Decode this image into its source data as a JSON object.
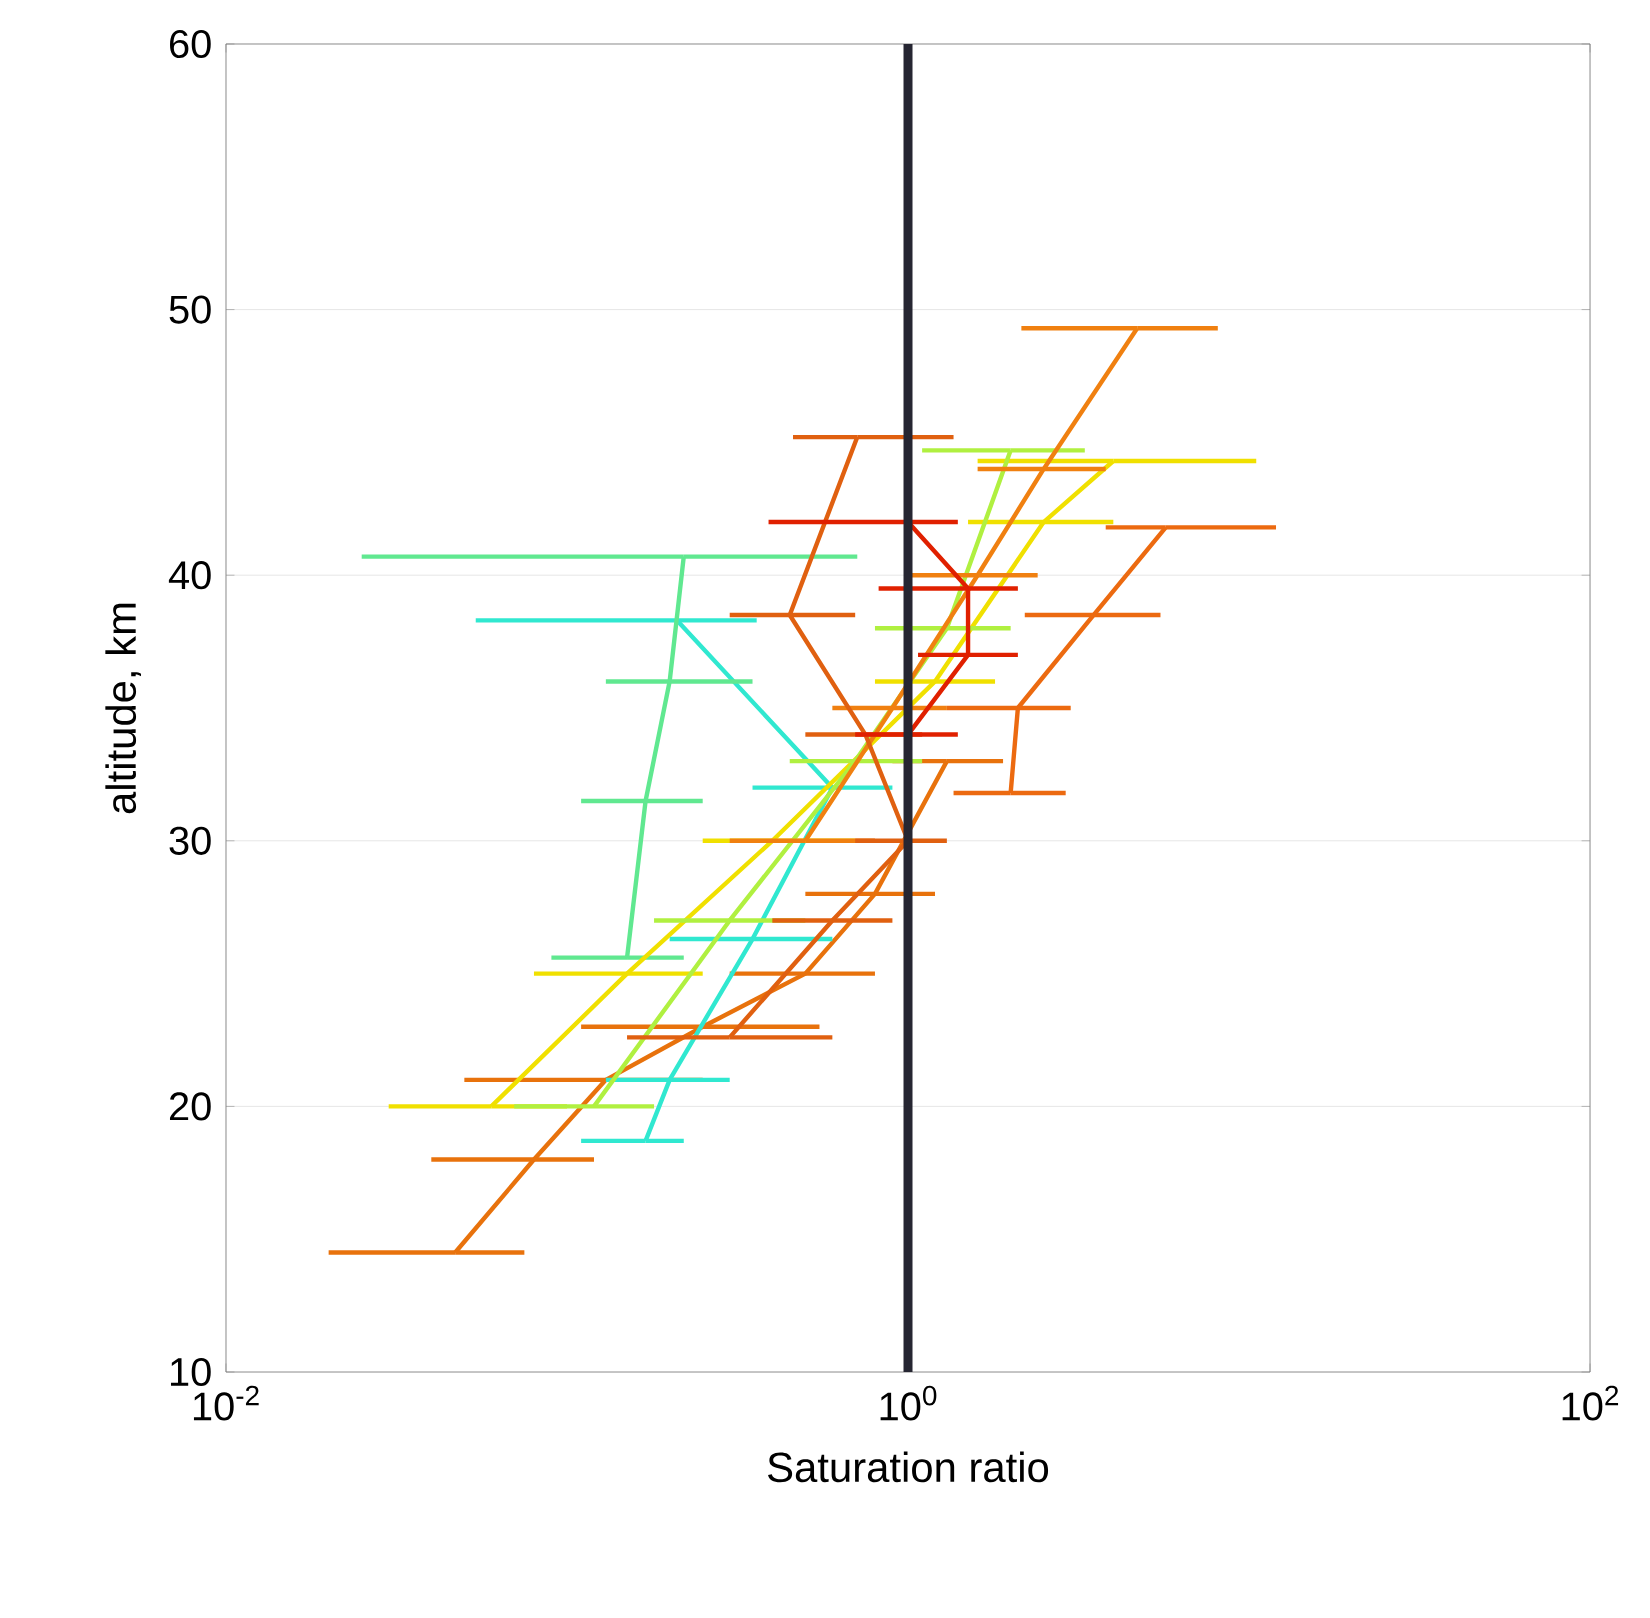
{
  "chart_data": {
    "type": "line",
    "xlabel": "Saturation ratio",
    "ylabel": "altitude, km",
    "log": "x",
    "grid": true,
    "marker": "none",
    "line_style": "solid",
    "xlim": [
      0.01,
      100
    ],
    "ylim": [
      10,
      60
    ],
    "xticks": [
      {
        "value": 0.01,
        "label": "10$^{-2}$"
      },
      {
        "value": 1,
        "label": "10$^{0}$"
      },
      {
        "value": 100,
        "label": "10$^{2}$"
      }
    ],
    "yticks": [
      10,
      20,
      30,
      40,
      50,
      60
    ],
    "ref_lines": [
      {
        "axis": "x",
        "value": 1,
        "color": "#262632"
      }
    ],
    "series": [
      {
        "color": "#e8720c",
        "x": [
          0.047,
          0.08,
          0.13,
          0.25,
          0.5,
          0.8,
          1.3
        ],
        "values": [
          14.5,
          18,
          21,
          23,
          25,
          28,
          33
        ],
        "xerrors": [
          [
            0.02,
            0.075
          ],
          [
            0.04,
            0.12
          ],
          [
            0.05,
            0.25
          ],
          [
            0.11,
            0.55
          ],
          [
            0.3,
            0.8
          ],
          [
            0.5,
            1.2
          ],
          [
            0.9,
            1.9
          ]
        ]
      },
      {
        "color": "#30e8d0",
        "x": [
          0.17,
          0.2,
          0.35,
          0.6,
          0.21
        ],
        "values": [
          18.7,
          21,
          26.3,
          32,
          38.3
        ],
        "xerrors": [
          [
            0.11,
            0.22
          ],
          [
            0.13,
            0.3
          ],
          [
            0.2,
            0.6
          ],
          [
            0.35,
            0.9
          ],
          [
            0.054,
            0.36
          ]
        ]
      },
      {
        "color": "#60e890",
        "x": [
          0.15,
          0.17,
          0.2,
          0.22
        ],
        "values": [
          25.6,
          31.5,
          36,
          40.7
        ],
        "xerrors": [
          [
            0.09,
            0.22
          ],
          [
            0.11,
            0.25
          ],
          [
            0.13,
            0.35
          ],
          [
            0.025,
            0.71
          ]
        ]
      },
      {
        "color": "#f0e000",
        "x": [
          0.06,
          0.15,
          0.4,
          1.2,
          2.5,
          4
        ],
        "values": [
          20,
          25,
          30,
          36,
          42,
          44.3
        ],
        "xerrors": [
          [
            0.03,
            0.1
          ],
          [
            0.08,
            0.25
          ],
          [
            0.25,
            0.7
          ],
          [
            0.8,
            1.8
          ],
          [
            1.5,
            4
          ],
          [
            1.6,
            10.5
          ]
        ]
      },
      {
        "color": "#b0f040",
        "x": [
          0.12,
          0.3,
          0.7,
          1.3,
          2.0
        ],
        "values": [
          20,
          27,
          33,
          38,
          44.7
        ],
        "xerrors": [
          [
            0.07,
            0.18
          ],
          [
            0.18,
            0.5
          ],
          [
            0.45,
            1.1
          ],
          [
            0.8,
            2
          ],
          [
            1.1,
            3.3
          ]
        ]
      },
      {
        "color": "#f08010",
        "x": [
          0.5,
          0.9,
          1.6,
          2.5,
          4.7
        ],
        "values": [
          30,
          35,
          40,
          44,
          49.3
        ],
        "xerrors": [
          [
            0.3,
            0.8
          ],
          [
            0.6,
            1.3
          ],
          [
            1.0,
            2.4
          ],
          [
            1.6,
            3.8
          ],
          [
            2.15,
            8.1
          ]
        ]
      },
      {
        "color": "#e06010",
        "x": [
          0.3,
          0.6,
          1.0,
          0.75,
          0.45,
          0.71
        ],
        "values": [
          22.6,
          27,
          30,
          34,
          38.5,
          45.2
        ],
        "xerrors": [
          [
            0.15,
            0.6
          ],
          [
            0.4,
            0.9
          ],
          [
            0.7,
            1.3
          ],
          [
            0.5,
            1.1
          ],
          [
            0.3,
            0.7
          ],
          [
            0.46,
            1.36
          ]
        ]
      },
      {
        "color": "#ec6a10",
        "x": [
          2.0,
          2.1,
          3.5,
          5.7
        ],
        "values": [
          31.8,
          35,
          38.5,
          41.8
        ],
        "xerrors": [
          [
            1.36,
            2.9
          ],
          [
            1.3,
            3.0
          ],
          [
            2.2,
            5.5
          ],
          [
            3.8,
            12
          ]
        ]
      },
      {
        "color": "#e02000",
        "x": [
          1.0,
          1.5,
          1.5,
          1.0
        ],
        "values": [
          34,
          37,
          39.5,
          42
        ],
        "xerrors": [
          [
            0.7,
            1.4
          ],
          [
            1.07,
            2.1
          ],
          [
            0.82,
            2.1
          ],
          [
            0.39,
            1.4
          ]
        ]
      }
    ]
  }
}
